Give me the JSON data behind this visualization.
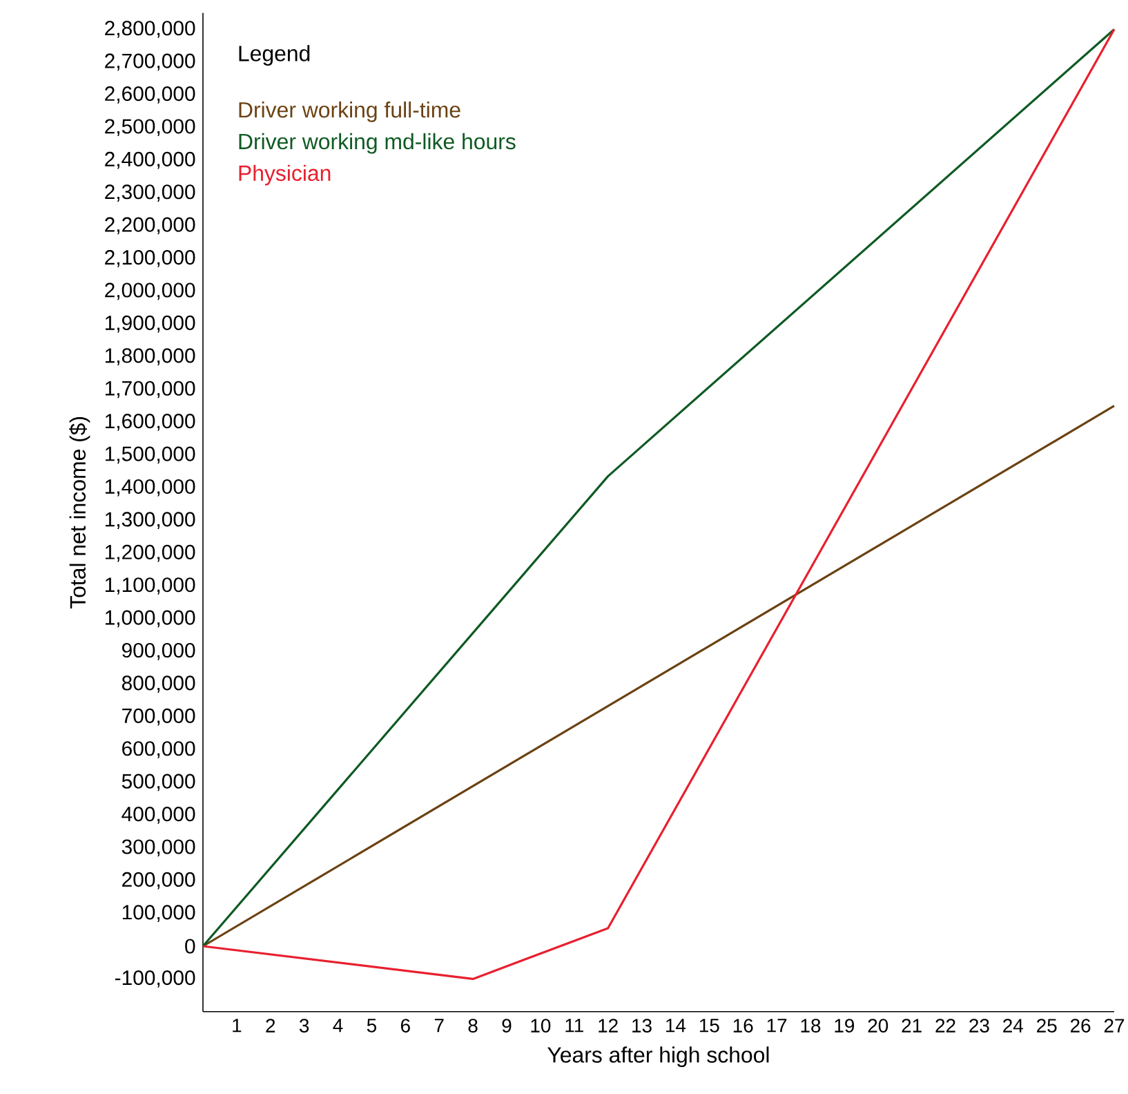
{
  "chart_data": {
    "type": "line",
    "xlabel": "Years after high school",
    "ylabel": "Total net income ($)",
    "legend_title": "Legend",
    "legend": "top left",
    "grid": false,
    "marker": "none",
    "line_style": "solid",
    "xlim": [
      0,
      27
    ],
    "ylim": [
      -200000,
      2850000
    ],
    "xticks": [
      1,
      2,
      3,
      4,
      5,
      6,
      7,
      8,
      9,
      10,
      11,
      12,
      13,
      14,
      15,
      16,
      17,
      18,
      19,
      20,
      21,
      22,
      23,
      24,
      25,
      26,
      27
    ],
    "yticks": [
      {
        "value": -100000,
        "label": "-100,000"
      },
      {
        "value": 0,
        "label": "0"
      },
      {
        "value": 100000,
        "label": "100,000"
      },
      {
        "value": 200000,
        "label": "200,000"
      },
      {
        "value": 300000,
        "label": "300,000"
      },
      {
        "value": 400000,
        "label": "400,000"
      },
      {
        "value": 500000,
        "label": "500,000"
      },
      {
        "value": 600000,
        "label": "600,000"
      },
      {
        "value": 700000,
        "label": "700,000"
      },
      {
        "value": 800000,
        "label": "800,000"
      },
      {
        "value": 900000,
        "label": "900,000"
      },
      {
        "value": 1000000,
        "label": "1,000,000"
      },
      {
        "value": 1100000,
        "label": "1,100,000"
      },
      {
        "value": 1200000,
        "label": "1,200,000"
      },
      {
        "value": 1300000,
        "label": "1,300,000"
      },
      {
        "value": 1400000,
        "label": "1,400,000"
      },
      {
        "value": 1500000,
        "label": "1,500,000"
      },
      {
        "value": 1600000,
        "label": "1,600,000"
      },
      {
        "value": 1700000,
        "label": "1,700,000"
      },
      {
        "value": 1800000,
        "label": "1,800,000"
      },
      {
        "value": 1900000,
        "label": "1,900,000"
      },
      {
        "value": 2000000,
        "label": "2,000,000"
      },
      {
        "value": 2100000,
        "label": "2,100,000"
      },
      {
        "value": 2200000,
        "label": "2,200,000"
      },
      {
        "value": 2300000,
        "label": "2,300,000"
      },
      {
        "value": 2400000,
        "label": "2,400,000"
      },
      {
        "value": 2500000,
        "label": "2,500,000"
      },
      {
        "value": 2600000,
        "label": "2,600,000"
      },
      {
        "value": 2700000,
        "label": "2,700,000"
      },
      {
        "value": 2800000,
        "label": "2,800,000"
      }
    ],
    "series": [
      {
        "name": "Driver working full-time",
        "color": "#6b4212",
        "x": [
          0,
          27
        ],
        "values": [
          0,
          1650000
        ]
      },
      {
        "name": "Driver working md-like hours",
        "color": "#0e5a23",
        "x": [
          0,
          12,
          27
        ],
        "values": [
          0,
          1435000,
          2800000
        ]
      },
      {
        "name": "Physician",
        "color": "#e8202f",
        "x": [
          0,
          8,
          12,
          27
        ],
        "values": [
          0,
          -100000,
          55000,
          2800000
        ]
      }
    ]
  }
}
